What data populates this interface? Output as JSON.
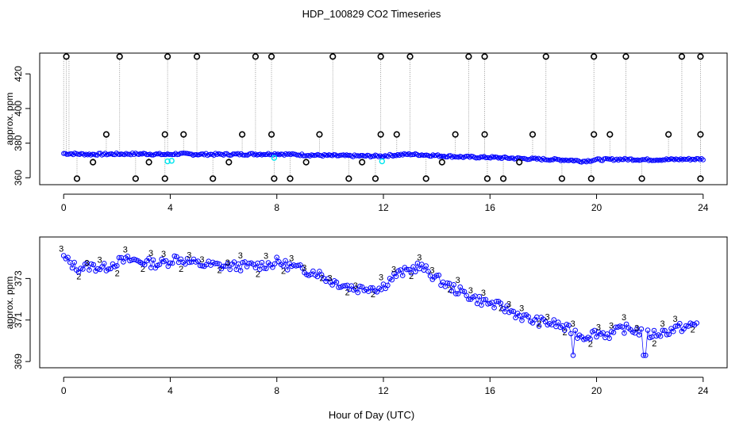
{
  "title": "HDP_100829  CO2 Timeseries",
  "xlabel": "Hour of Day (UTC)",
  "colors": {
    "primary": "#0000ff",
    "secondary": "#00cc00",
    "cal": "#00e5ee",
    "outlier": "#000000",
    "droplines": "#888888"
  },
  "chart_data": [
    {
      "type": "scatter",
      "panel": "top",
      "title": "HDP_100829  CO2 Timeseries",
      "xlabel": "",
      "ylabel": "approx. ppm",
      "xlim": [
        -0.9,
        24.9
      ],
      "ylim": [
        356,
        432
      ],
      "xticks": [
        0,
        4,
        8,
        12,
        16,
        20,
        24
      ],
      "yticks": [
        360,
        380,
        400,
        420
      ],
      "baseline_series": {
        "name": "blue open-circle baseline",
        "color": "#0000ff",
        "x": [
          0,
          1,
          2,
          3,
          3.9,
          4.2,
          5,
          6,
          7,
          7.8,
          8,
          9,
          10,
          11,
          11.9,
          12.2,
          13,
          13.5,
          14,
          15,
          15.8,
          16,
          17,
          18,
          19,
          19.5,
          20,
          21,
          22,
          23,
          23.9
        ],
        "y": [
          374,
          373.5,
          373.7,
          373.8,
          373.4,
          373.8,
          373.5,
          373.5,
          373.6,
          373.7,
          373.8,
          373.2,
          372.8,
          372.6,
          372.5,
          372.9,
          373.6,
          373.2,
          372.8,
          372,
          371.8,
          371.8,
          371.2,
          370.7,
          370.2,
          369.5,
          370.4,
          370.7,
          370.4,
          370.6,
          370.8
        ]
      },
      "cal_points": {
        "name": "cyan calibration points",
        "color": "#00e5ee",
        "x": [
          3.9,
          4.05,
          7.9,
          11.95
        ],
        "y": [
          369.5,
          369.8,
          371.5,
          369.5
        ]
      },
      "outliers_high": {
        "x": [
          0.1,
          2.1,
          3.9,
          5.0,
          7.2,
          7.8,
          10.1,
          11.9,
          13.0,
          15.2,
          15.8,
          18.1,
          19.9,
          21.1,
          23.2,
          23.9
        ],
        "y": [
          430,
          430,
          430,
          430,
          430,
          430,
          430,
          430,
          430,
          430,
          430,
          430,
          430,
          430,
          430,
          430
        ]
      },
      "outliers_mid": {
        "x": [
          1.6,
          3.8,
          4.5,
          6.7,
          7.8,
          9.6,
          11.9,
          12.5,
          14.7,
          15.8,
          17.6,
          19.9,
          20.5,
          22.7,
          23.9
        ],
        "y": [
          385,
          385,
          385,
          385,
          385,
          385,
          385,
          385,
          385,
          385,
          385,
          385,
          385,
          385,
          385
        ]
      },
      "outliers_low": {
        "x": [
          0.5,
          1.1,
          2.7,
          3.2,
          3.8,
          5.6,
          6.2,
          7.9,
          8.5,
          9.1,
          10.7,
          11.2,
          11.7,
          13.6,
          14.2,
          15.9,
          16.5,
          17.1,
          18.7,
          19.8,
          21.7,
          23.9
        ],
        "y": [
          359.5,
          369,
          359.5,
          369,
          359.5,
          359.5,
          369,
          359.5,
          359.5,
          369,
          359.5,
          369,
          359.5,
          359.5,
          369,
          359.5,
          359.5,
          369,
          359.5,
          359.5,
          359.5,
          359.5
        ]
      }
    },
    {
      "type": "scatter",
      "panel": "bottom",
      "title": "",
      "xlabel": "Hour of Day (UTC)",
      "ylabel": "approx. ppm",
      "xlim": [
        -0.9,
        24.9
      ],
      "ylim": [
        368.7,
        375.0
      ],
      "xticks": [
        0,
        4,
        8,
        12,
        16,
        20,
        24
      ],
      "yticks": [
        369,
        371,
        373
      ],
      "series": [
        {
          "name": "circle markers (blue)",
          "color": "#0000ff",
          "x": [
            0,
            0.5,
            1,
            1.5,
            2,
            2.5,
            3,
            3.5,
            3.9,
            4.2,
            5,
            6,
            7,
            7.8,
            8,
            8.5,
            9,
            9.5,
            10,
            10.5,
            11,
            11.5,
            11.9,
            12.2,
            12.5,
            13,
            13.3,
            13.6,
            14,
            14.5,
            15,
            15.5,
            16,
            16.5,
            17,
            17.5,
            18,
            18.5,
            19,
            19.5,
            20,
            20.5,
            21,
            21.5,
            22,
            22.5,
            23,
            23.5,
            23.8
          ],
          "y": [
            374,
            373.5,
            373.6,
            373.5,
            373.8,
            373.9,
            373.8,
            373.7,
            373.8,
            374,
            373.7,
            373.6,
            373.6,
            373.7,
            373.8,
            373.6,
            373.4,
            373.3,
            372.9,
            372.7,
            372.5,
            372.6,
            372.5,
            372.9,
            373.2,
            373.4,
            373.6,
            373.4,
            373,
            372.6,
            372.3,
            372,
            371.8,
            371.6,
            371.3,
            371,
            370.9,
            370.8,
            370.5,
            370.2,
            370.4,
            370.3,
            370.6,
            370.5,
            370.3,
            370.4,
            370.6,
            370.7,
            370.8
          ]
        },
        {
          "name": "numeric plot characters",
          "color": "#00aa00",
          "text_labels": [
            "3",
            "2",
            "3",
            "3",
            "2",
            "3",
            "2",
            "3",
            "3",
            "2",
            "3",
            "3",
            "2",
            "3",
            "3",
            "2",
            "3",
            "2",
            "3",
            "3",
            "2",
            "3",
            "2",
            "3",
            "2",
            "3",
            "3",
            "2",
            "3",
            "3",
            "2",
            "3",
            "3",
            "3",
            "2",
            "3",
            "3",
            "2",
            "3",
            "2",
            "3",
            "2",
            "3",
            "3",
            "3",
            "3",
            "2",
            "3"
          ]
        }
      ]
    }
  ]
}
